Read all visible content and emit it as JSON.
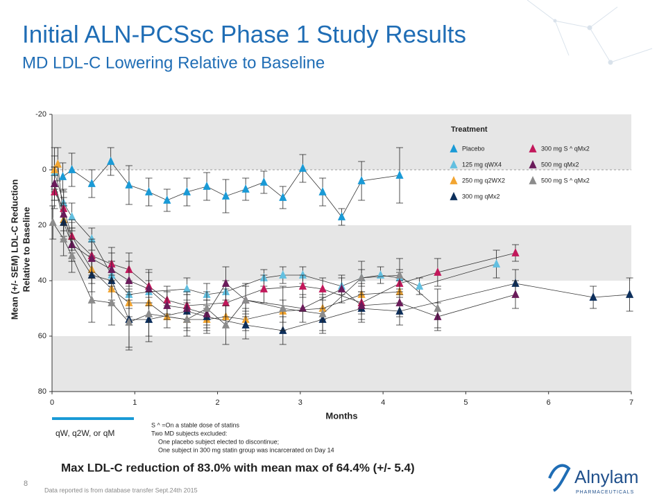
{
  "slide": {
    "title": "Initial ALN-PCSsc Phase 1 Study Results",
    "subtitle": "MD LDL-C Lowering Relative to Baseline",
    "dosing_note": "qW, q2W, or qM",
    "footnotes": [
      "S ^ =On a stable dose of statins",
      "Two MD subjects excluded:",
      "One placebo subject elected to discontinue;",
      "One subject in 300 mg statin group was incarcerated on Day 14"
    ],
    "conclusion": "Max LDL-C reduction of 83.0% with mean max of 64.4% (+/- 5.4)",
    "page_number": "8",
    "data_note": "Data reported is from database transfer Sept.24th 2015",
    "logo": "Alnylam",
    "logo_sub": "PHARMACEUTICALS"
  },
  "chart_data": {
    "type": "line",
    "x_label": "Months",
    "y_label": [
      "Mean (+/- SEM) LDL-C Reduction",
      "Relative to Baseline"
    ],
    "xlim": [
      0,
      7
    ],
    "xticks": [
      0,
      1,
      2,
      3,
      4,
      5,
      6,
      7
    ],
    "ylim": [
      -20,
      80
    ],
    "yticks": [
      -20,
      0,
      20,
      40,
      60,
      80
    ],
    "inverted": true,
    "bands": true,
    "zero_line": true,
    "legend_title": "Treatment",
    "legend": "upper right",
    "series": [
      {
        "name": "Placebo",
        "color": "#1a9ad6",
        "x": [
          0.13,
          0.24,
          0.48,
          0.71,
          0.93,
          1.17,
          1.39,
          1.63,
          1.87,
          2.1,
          2.34,
          2.56,
          2.79,
          3.03,
          3.27,
          3.5,
          3.74,
          4.2
        ],
        "values": [
          2.5,
          0,
          5,
          -3,
          5.5,
          8,
          11,
          8,
          6,
          9.5,
          7,
          4.5,
          10,
          -0.5,
          8,
          17,
          4,
          2
        ],
        "errors": [
          5,
          6,
          5,
          5,
          7,
          5,
          4,
          5,
          5,
          6,
          4,
          4,
          4,
          5,
          5,
          3,
          7,
          10
        ]
      },
      {
        "name": "125 mg qWX4",
        "color": "#62bfe0",
        "x": [
          0.03,
          0.14,
          0.24,
          0.48,
          0.72,
          0.93,
          1.17,
          1.63,
          1.87,
          2.1,
          2.56,
          2.79,
          3.03,
          3.5,
          3.74,
          3.97,
          4.2,
          4.44,
          5.37
        ],
        "values": [
          1,
          12,
          17,
          25,
          38,
          45,
          44,
          43,
          45,
          44,
          39,
          38,
          38,
          42,
          39,
          38,
          39,
          42,
          34
        ],
        "errors": [
          6,
          5,
          5,
          4,
          5,
          5,
          4,
          4,
          4,
          4,
          3,
          3,
          3,
          3,
          3,
          3,
          3,
          3,
          5
        ]
      },
      {
        "name": "250 mg q2WX2",
        "color": "#f2a531",
        "x": [
          0.03,
          0.07,
          0.14,
          0.24,
          0.48,
          0.72,
          0.93,
          1.17,
          1.39,
          1.63,
          1.87,
          2.1,
          2.34,
          2.79,
          3.27,
          3.74,
          4.2
        ],
        "values": [
          0,
          -2,
          18,
          24,
          36,
          43,
          48,
          48,
          53,
          54,
          54,
          53,
          54,
          51,
          50,
          45,
          44
        ],
        "errors": [
          8,
          6,
          6,
          5,
          5,
          5,
          5,
          5,
          4,
          4,
          4,
          4,
          4,
          4,
          4,
          4,
          4
        ]
      },
      {
        "name": "300 mg qMx2",
        "color": "#0d2f5c",
        "x": [
          0.03,
          0.14,
          0.24,
          0.48,
          0.72,
          0.93,
          1.17,
          1.63,
          1.87,
          2.34,
          2.79,
          3.27,
          3.74,
          4.2,
          5.6,
          6.54,
          6.98
        ],
        "values": [
          5,
          19,
          27,
          38,
          40,
          54,
          54,
          51,
          53,
          56,
          58,
          54,
          50,
          51,
          41,
          46,
          45
        ],
        "errors": [
          6,
          6,
          6,
          6,
          7,
          10,
          8,
          6,
          6,
          5,
          5,
          4,
          5,
          5,
          5,
          4,
          6
        ]
      },
      {
        "name": "300 mg S ^ qMx2",
        "color": "#c2185b",
        "x": [
          0.03,
          0.14,
          0.24,
          0.48,
          0.72,
          0.93,
          1.17,
          1.39,
          1.63,
          2.1,
          2.56,
          3.03,
          3.27,
          3.74,
          4.2,
          4.66,
          5.6
        ],
        "values": [
          8,
          14,
          24,
          31,
          34,
          36,
          42,
          47,
          49,
          48,
          43,
          42,
          43,
          48,
          41,
          37,
          30
        ],
        "errors": [
          6,
          6,
          6,
          6,
          6,
          6,
          6,
          5,
          5,
          5,
          5,
          4,
          4,
          4,
          4,
          5,
          3
        ]
      },
      {
        "name": "500 mg qMx2",
        "color": "#6a1b5a",
        "x": [
          0.03,
          0.14,
          0.24,
          0.48,
          0.72,
          0.93,
          1.17,
          1.39,
          1.63,
          1.87,
          2.1,
          2.34,
          3.03,
          3.5,
          3.74,
          4.2,
          4.66,
          5.6
        ],
        "values": [
          5,
          16,
          27,
          32,
          36,
          40,
          43,
          49,
          50,
          52,
          41,
          47,
          50,
          43,
          49,
          48,
          53,
          45
        ],
        "errors": [
          6,
          6,
          6,
          6,
          6,
          7,
          6,
          5,
          5,
          5,
          6,
          5,
          5,
          5,
          5,
          5,
          5,
          5
        ]
      },
      {
        "name": "500 mg S ^ qMx2",
        "color": "#8c8c8c",
        "x": [
          0.01,
          0.14,
          0.24,
          0.48,
          0.72,
          0.93,
          1.17,
          1.63,
          1.87,
          2.1,
          2.34,
          2.79,
          3.27,
          3.74,
          4.2,
          4.66
        ],
        "values": [
          19,
          25,
          31,
          47,
          48,
          55,
          52,
          54,
          50,
          56,
          47,
          50,
          52,
          39,
          38,
          50
        ],
        "errors": [
          6,
          6,
          6,
          8,
          8,
          10,
          8,
          6,
          6,
          7,
          6,
          8,
          7,
          6,
          6,
          7
        ]
      }
    ]
  }
}
